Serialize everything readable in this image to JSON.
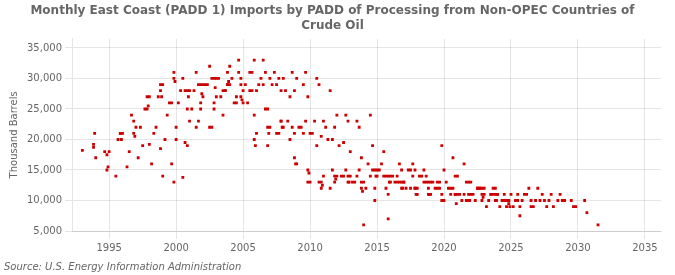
{
  "chart_data": {
    "type": "scatter",
    "title": "Monthly East Coast (PADD 1) Imports by PADD of Processing from Non-OPEC Countries of\nCrude Oil",
    "ylabel": "Thousand Barrels",
    "annotations": [
      "Source: U.S. Energy Information Administration"
    ],
    "color": "#cc0000",
    "marker": "square",
    "grid": true,
    "xlim": [
      1992.3,
      2036.2
    ],
    "xticks": [
      1995,
      2000,
      2005,
      2010,
      2015,
      2020,
      2025,
      2030,
      2035
    ],
    "ylim": [
      5000,
      36500
    ],
    "yticks": [
      {
        "value": 5000,
        "label": "5,000"
      },
      {
        "value": 10000,
        "label": "10,000"
      },
      {
        "value": 15000,
        "label": "15,000"
      },
      {
        "value": 20000,
        "label": "20,000"
      },
      {
        "value": 25000,
        "label": "25,000"
      },
      {
        "value": 30000,
        "label": "30,000"
      },
      {
        "value": 35000,
        "label": "35,000"
      }
    ],
    "x": [
      1993,
      1993.833333333333,
      1994.666666666667,
      1995.5,
      1996.333333333333,
      1997.166666666667,
      1998,
      1998.833333333333,
      1999.666666666667,
      2000.5,
      1993.833333333333,
      1993.916666666667,
      1994,
      1994.833333333333,
      1995.666666666667,
      1996.5,
      1997.333333333333,
      1998.166666666667,
      1999,
      1999.833333333333,
      2000.666666666667,
      2001.5,
      1994.833333333333,
      1994.916666666667,
      1995,
      1995.833333333333,
      1996.666666666667,
      1997.5,
      1998.333333333333,
      1999.166666666667,
      2000,
      2000.833333333333,
      2001.666666666667,
      2002.5,
      1995.833333333333,
      1995.916666666667,
      1996,
      1996.833333333333,
      1997.666666666667,
      1998.5,
      1999.333333333333,
      2000.166666666667,
      2001,
      2001.833333333333,
      2002.666666666667,
      2003.5,
      1996.833333333333,
      1996.916666666667,
      1997,
      1997.833333333333,
      1998.666666666667,
      1999.5,
      2000.333333333333,
      2001.166666666667,
      2002,
      2002.833333333333,
      2003.666666666667,
      2004.5,
      1997.833333333333,
      1997.916666666667,
      1998,
      1998.833333333333,
      1999.666666666667,
      2000.5,
      2001.333333333333,
      2002.166666666667,
      2003,
      2003.833333333333,
      2004.666666666667,
      2005.5,
      1998.833333333333,
      1998.916666666667,
      1999,
      1999.833333333333,
      2000.666666666667,
      2001.5,
      2002.333333333333,
      2003.166666666667,
      2004,
      2004.833333333333,
      2005.666666666667,
      2006.5,
      1999.833333333333,
      1999.916666666667,
      2000,
      2000.833333333333,
      2001.666666666667,
      2002.5,
      2003.333333333333,
      2004.166666666667,
      2005,
      2005.833333333333,
      2006.666666666667,
      2007.5,
      2000.833333333333,
      2000.916666666667,
      2001,
      2001.833333333333,
      2002.666666666667,
      2003.5,
      2004.333333333333,
      2005.166666666667,
      2006,
      2006.833333333333,
      2007.666666666667,
      2008.5,
      2001.833333333333,
      2001.916666666667,
      2002,
      2002.833333333333,
      2003.666666666667,
      2004.5,
      2005.333333333333,
      2006.166666666667,
      2007,
      2007.833333333333,
      2008.666666666667,
      2009.5,
      2002.833333333333,
      2002.916666666667,
      2003,
      2003.833333333333,
      2004.666666666667,
      2005.5,
      2006.333333333333,
      2007.166666666667,
      2008,
      2008.833333333333,
      2009.666666666667,
      2010.5,
      2003.833333333333,
      2003.916666666667,
      2004,
      2004.833333333333,
      2005.666666666667,
      2006.5,
      2007.333333333333,
      2008.166666666667,
      2009,
      2009.833333333333,
      2010.666666666667,
      2011.5,
      2004.833333333333,
      2004.916666666667,
      2005,
      2005.833333333333,
      2006.666666666667,
      2007.5,
      2008.333333333333,
      2009.166666666667,
      2010,
      2010.833333333333,
      2011.666666666667,
      2012.5,
      2005.833333333333,
      2005.916666666667,
      2006,
      2006.833333333333,
      2007.666666666667,
      2008.5,
      2009.333333333333,
      2010.166666666667,
      2011,
      2011.833333333333,
      2012.666666666667,
      2013.5,
      2006.833333333333,
      2006.916666666667,
      2007,
      2007.833333333333,
      2008.666666666667,
      2009.5,
      2010.333333333333,
      2011.166666666667,
      2012,
      2012.833333333333,
      2013.666666666667,
      2014.5,
      2007.833333333333,
      2007.916666666667,
      2008,
      2008.833333333333,
      2009.666666666667,
      2010.5,
      2011.333333333333,
      2012.166666666667,
      2013,
      2013.833333333333,
      2014.666666666667,
      2015.5,
      2008.833333333333,
      2008.916666666667,
      2009,
      2009.833333333333,
      2010.666666666667,
      2011.5,
      2012.333333333333,
      2013.166666666667,
      2014,
      2014.833333333333,
      2015.666666666667,
      2016.5,
      2009.833333333333,
      2009.916666666667,
      2010,
      2010.833333333333,
      2011.666666666667,
      2012.5,
      2013.333333333333,
      2014.166666666667,
      2015,
      2015.833333333333,
      2016.666666666667,
      2017.5,
      2010.833333333333,
      2010.916666666667,
      2011,
      2011.833333333333,
      2012.666666666667,
      2013.5,
      2014.333333333333,
      2015.166666666667,
      2016,
      2016.833333333333,
      2017.666666666667,
      2018.5,
      2011.833333333333,
      2011.916666666667,
      2012,
      2012.833333333333,
      2013.666666666667,
      2014.5,
      2015.333333333333,
      2016.166666666667,
      2017,
      2017.833333333333,
      2018.666666666667,
      2019.5,
      2012.833333333333,
      2012.916666666667,
      2013,
      2013.833333333333,
      2014.666666666667,
      2015.5,
      2016.333333333333,
      2017.166666666667,
      2018,
      2018.833333333333,
      2019.666666666667,
      2020.5,
      2013.833333333333,
      2013.916666666667,
      2014,
      2014.833333333333,
      2015.666666666667,
      2016.5,
      2017.333333333333,
      2018.166666666667,
      2019,
      2019.833333333333,
      2020.666666666667,
      2021.5,
      2014.833333333333,
      2014.916666666667,
      2015,
      2015.833333333333,
      2016.666666666667,
      2017.5,
      2018.333333333333,
      2019.166666666667,
      2020,
      2020.833333333333,
      2021.666666666667,
      2022.5,
      2015.833333333333,
      2015.916666666667,
      2016,
      2016.833333333333,
      2017.666666666667,
      2018.5,
      2019.333333333333,
      2020.166666666667,
      2021,
      2021.833333333333,
      2022.666666666667,
      2023.5,
      2016.833333333333,
      2016.916666666667,
      2017,
      2017.833333333333,
      2018.666666666667,
      2019.5,
      2020.333333333333,
      2021.166666666667,
      2022,
      2022.833333333333,
      2023.666666666667,
      2024.5,
      2017.833333333333,
      2017.916666666667,
      2018,
      2018.833333333333,
      2019.666666666667,
      2020.5,
      2021.333333333333,
      2022.166666666667,
      2023,
      2023.833333333333,
      2024.666666666667,
      2025.5,
      2018.833333333333,
      2018.916666666667,
      2019,
      2019.833333333333,
      2020.666666666667,
      2021.5,
      2022.333333333333,
      2023.166666666667,
      2024,
      2024.833333333333,
      2025.666666666667,
      2026.5,
      2019.833333333333,
      2019.916666666667,
      2020,
      2020.833333333333,
      2021.666666666667,
      2022.5,
      2023.333333333333,
      2024.166666666667,
      2025,
      2025.833333333333,
      2026.666666666667,
      2027.5,
      2020.833333333333,
      2020.916666666667,
      2021,
      2021.833333333333,
      2022.666666666667,
      2023.5,
      2024.333333333333,
      2025.166666666667,
      2026,
      2026.833333333333,
      2027.666666666667,
      2028.5,
      2021.833333333333,
      2021.916666666667,
      2022,
      2022.833333333333,
      2023.666666666667,
      2024.5,
      2025.333333333333,
      2026.166666666667,
      2027,
      2027.833333333333,
      2028.666666666667,
      2029.5,
      2022.833333333333,
      2022.916666666667,
      2023,
      2023.833333333333,
      2024.666666666667,
      2025.5,
      2026.333333333333,
      2027.166666666667,
      2028,
      2028.833333333333,
      2029.666666666667,
      2030.5,
      2023.833333333333,
      2023.916666666667,
      2024,
      2024.833333333333,
      2025.666666666667,
      2026.5,
      2027.333333333333,
      2028.166666666667,
      2029,
      2029.833333333333,
      2030.666666666667,
      2031.5,
      2024.833333333333,
      2024.916666666667
    ],
    "values": [
      18200,
      18700,
      18000,
      14000,
      15500,
      17000,
      19200,
      18500,
      16000,
      13800,
      19200,
      21000,
      17000,
      15000,
      20000,
      18000,
      22000,
      16000,
      14000,
      13000,
      19500,
      22000,
      17500,
      15500,
      18000,
      21000,
      24000,
      19000,
      21000,
      20000,
      22000,
      19000,
      23000,
      22000,
      21000,
      20000,
      21000,
      23000,
      25000,
      22000,
      24000,
      26000,
      23000,
      25000,
      22000,
      24000,
      21000,
      20500,
      22000,
      25000,
      27000,
      26000,
      28000,
      25000,
      27000,
      26000,
      28000,
      26000,
      27000,
      25500,
      27000,
      28000,
      26000,
      30000,
      28000,
      29000,
      27000,
      31000,
      33000,
      31000,
      29000,
      27000,
      29000,
      30000,
      28000,
      31000,
      29000,
      30000,
      32000,
      29000,
      31000,
      33000,
      31000,
      29500,
      20000,
      25000,
      29000,
      32000,
      27000,
      30000,
      28000,
      33000,
      31000,
      29000,
      28000,
      27000,
      28000,
      26000,
      30000,
      28000,
      26000,
      29000,
      28000,
      25000,
      30000,
      27000,
      29000,
      27500,
      29000,
      25000,
      28000,
      27000,
      26000,
      29000,
      30000,
      28000,
      31000,
      29000,
      30000,
      28500,
      30000,
      29000,
      31000,
      28000,
      30000,
      29000,
      30000,
      28000,
      31000,
      30000,
      29000,
      29500,
      29000,
      30000,
      28000,
      29000,
      31000,
      28000,
      30000,
      27000,
      29000,
      28000,
      27000,
      26500,
      26000,
      24000,
      25000,
      21000,
      23000,
      22000,
      21000,
      20500,
      20000,
      19500,
      20000,
      19000,
      21000,
      19000,
      21000,
      20000,
      22000,
      21000,
      23000,
      22000,
      24000,
      23000,
      22000,
      21000,
      22000,
      23000,
      22000,
      21000,
      23000,
      22000,
      24000,
      23000,
      22000,
      24000,
      23000,
      22000,
      22000,
      21000,
      23000,
      19000,
      20000,
      19000,
      18000,
      17000,
      19000,
      18000,
      17000,
      16000,
      16000,
      15000,
      13000,
      12000,
      14000,
      13000,
      6000,
      10000,
      12000,
      14000,
      13000,
      14500,
      13000,
      12000,
      15000,
      14000,
      13000,
      12000,
      14000,
      11000,
      13000,
      12000,
      13000,
      12500,
      14000,
      13000,
      15000,
      14000,
      16000,
      15000,
      14000,
      15000,
      16000,
      15000,
      14000,
      13500,
      14000,
      13000,
      15000,
      14000,
      16000,
      14000,
      13000,
      15000,
      13000,
      12000,
      14000,
      13000,
      14000,
      13000,
      15000,
      14000,
      13000,
      12000,
      11000,
      13000,
      12000,
      11000,
      12000,
      11500,
      13000,
      12000,
      14000,
      13000,
      15000,
      14000,
      13000,
      19000,
      17000,
      16000,
      15000,
      14000,
      15000,
      14000,
      16000,
      15000,
      14000,
      13000,
      15000,
      14000,
      13000,
      12000,
      7000,
      13000,
      13000,
      12000,
      14000,
      13000,
      12000,
      13000,
      14000,
      13000,
      12000,
      11000,
      13000,
      12000,
      13000,
      12000,
      14000,
      13000,
      12000,
      11000,
      13000,
      12000,
      11000,
      10000,
      12000,
      11000,
      12000,
      11000,
      13000,
      12000,
      10000,
      11000,
      12000,
      10000,
      9000,
      10000,
      12000,
      11000,
      11000,
      10000,
      12000,
      11000,
      10000,
      9000,
      11000,
      10000,
      7500,
      9000,
      11000,
      10000,
      10000,
      11000,
      10000,
      12000,
      10000,
      9000,
      11000,
      10000,
      9000,
      10000,
      11000,
      9500,
      11000,
      10000,
      12000,
      11000,
      10000,
      9000,
      11000,
      10000,
      9000,
      10000,
      11000,
      10000,
      11000,
      10000,
      12000,
      11000,
      10000,
      11000,
      12000,
      10000,
      11000,
      10000,
      11000,
      10500,
      11000,
      12000,
      10000,
      11000,
      12000,
      10000,
      11000,
      10000,
      9000,
      10000,
      11000,
      10000,
      11000,
      10000,
      9000,
      10000,
      11000,
      9000,
      10000,
      9000,
      8000,
      6000,
      9500,
      9000
    ]
  }
}
